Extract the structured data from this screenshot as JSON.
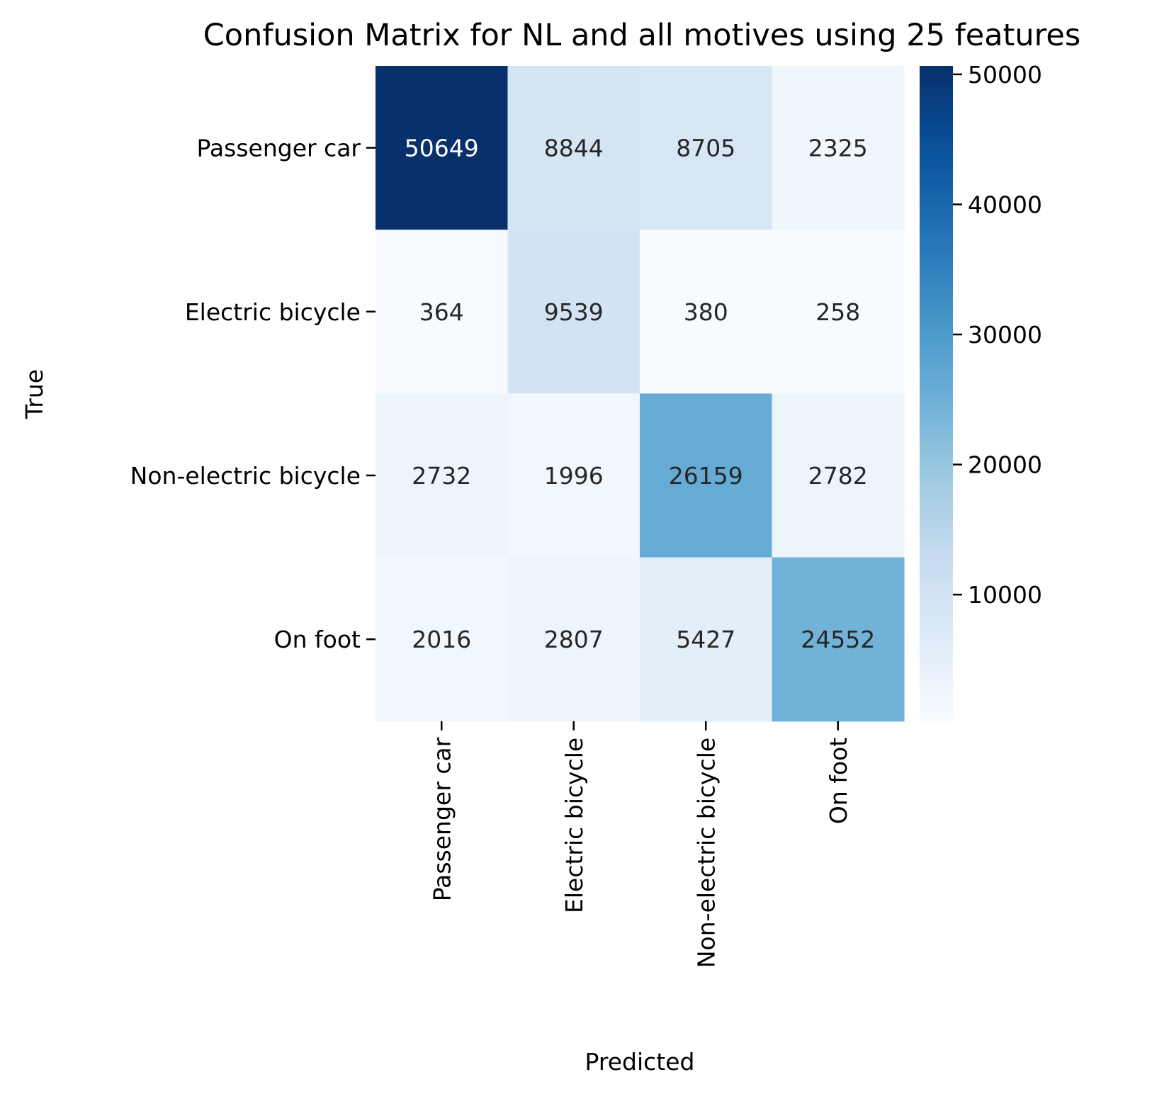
{
  "chart_data": {
    "type": "heatmap",
    "title": "Confusion Matrix for NL and all motives using 25 features",
    "xlabel": "Predicted",
    "ylabel": "True",
    "x_categories": [
      "Passenger car",
      "Electric bicycle",
      "Non-electric bicycle",
      "On foot"
    ],
    "y_categories": [
      "Passenger car",
      "Electric bicycle",
      "Non-electric bicycle",
      "On foot"
    ],
    "values": [
      [
        50649,
        8844,
        8705,
        2325
      ],
      [
        364,
        9539,
        380,
        258
      ],
      [
        2732,
        1996,
        26159,
        2782
      ],
      [
        2016,
        2807,
        5427,
        24552
      ]
    ],
    "colormap": "Blues",
    "colorbar": {
      "min": 258,
      "max": 50649,
      "ticks": [
        10000,
        20000,
        30000,
        40000,
        50000
      ],
      "tick_labels": [
        "10000",
        "20000",
        "30000",
        "40000",
        "50000"
      ]
    },
    "annotation_dark_color": "#262626",
    "annotation_light_color": "#ffffff"
  }
}
